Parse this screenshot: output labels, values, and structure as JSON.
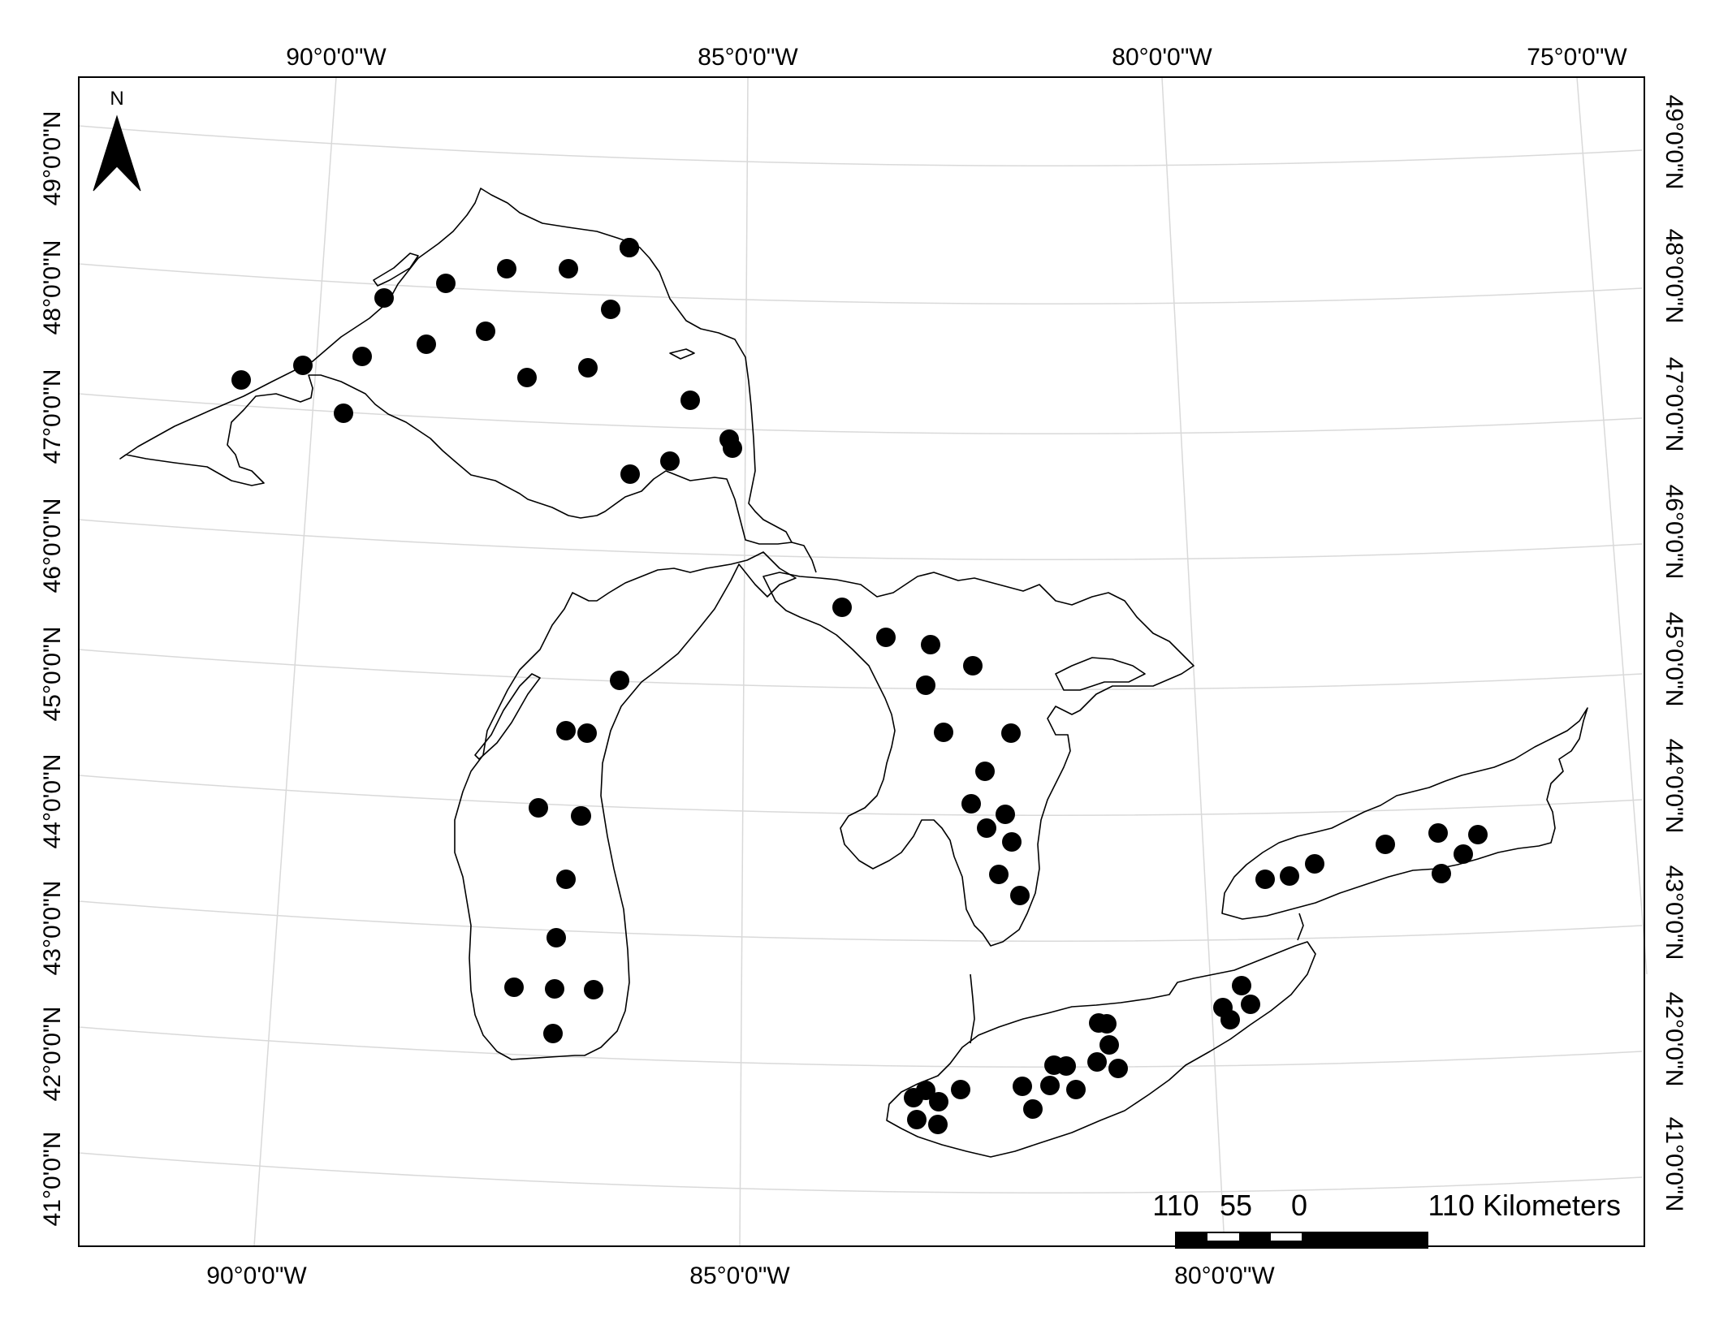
{
  "north_arrow": {
    "label": "N"
  },
  "graticule": {
    "top_labels": [
      "90°0'0\"W",
      "85°0'0\"W",
      "80°0'0\"W",
      "75°0'0\"W"
    ],
    "bottom_labels": [
      "90°0'0\"W",
      "85°0'0\"W",
      "80°0'0\"W"
    ],
    "left_labels": [
      "49°0'0\"N",
      "48°0'0\"N",
      "47°0'0\"N",
      "46°0'0\"N",
      "45°0'0\"N",
      "44°0'0\"N",
      "43°0'0\"N",
      "42°0'0\"N",
      "41°0'0\"N"
    ],
    "right_labels": [
      "49°0'0\"N",
      "48°0'0\"N",
      "47°0'0\"N",
      "46°0'0\"N",
      "45°0'0\"N",
      "44°0'0\"N",
      "43°0'0\"N",
      "42°0'0\"N",
      "41°0'0\"N"
    ]
  },
  "scale_bar": {
    "label_110_left": "110",
    "label_55": "55",
    "label_0": "0",
    "label_110_right": "110 Kilometers"
  },
  "sample_sites": {
    "lake_superior_count": 20,
    "lake_michigan_count": 12,
    "lake_huron_count": 14,
    "lake_erie_count": 21,
    "lake_ontario_count": 8
  },
  "colors": {
    "ink": "#000000",
    "graticule": "#d9d9d9",
    "background": "#ffffff"
  }
}
